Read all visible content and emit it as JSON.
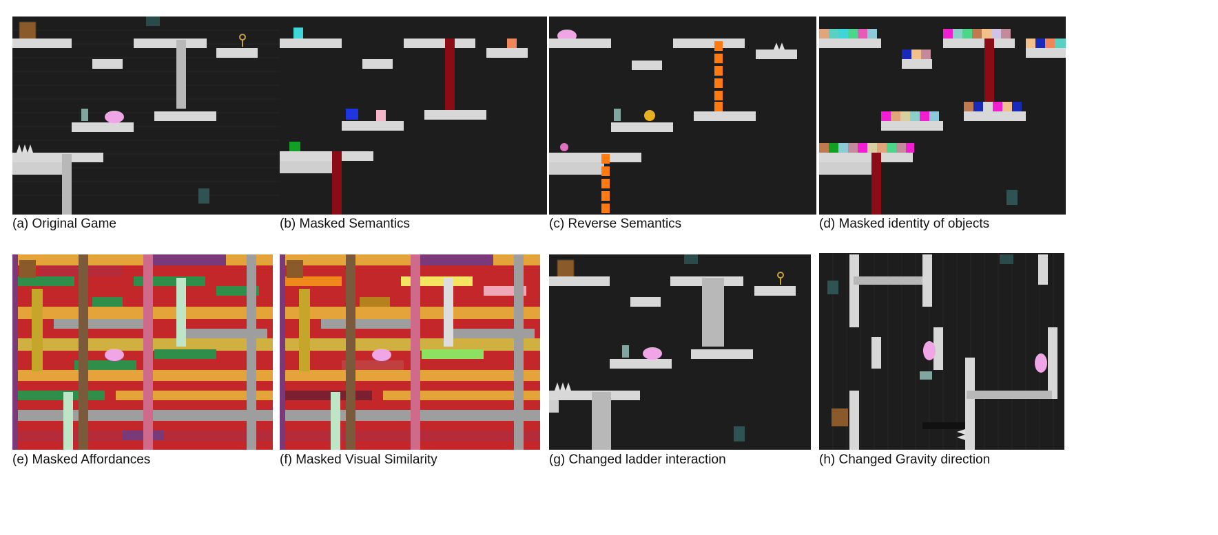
{
  "figure": {
    "panels": [
      {
        "id": "a",
        "caption": "(a) Original Game"
      },
      {
        "id": "b",
        "caption": "(b) Masked Semantics"
      },
      {
        "id": "c",
        "caption": "(c) Reverse Semantics"
      },
      {
        "id": "d",
        "caption": "(d) Masked identity of objects"
      },
      {
        "id": "e",
        "caption": "(e) Masked Affordances"
      },
      {
        "id": "f",
        "caption": "(f) Masked Visual Similarity"
      },
      {
        "id": "g",
        "caption": "(g) Changed ladder interaction"
      },
      {
        "id": "h",
        "caption": "(h) Changed Gravity direction"
      }
    ]
  },
  "colors": {
    "background": "#1e1e1e",
    "platform": "#d8d8d8",
    "ladder": "#b8b8b8",
    "enemy": "#f0a6e6",
    "key": "#c8a23a",
    "door": "#8b5a2b",
    "red_bar": "#8b0c14",
    "flame": "#ff7a10"
  }
}
